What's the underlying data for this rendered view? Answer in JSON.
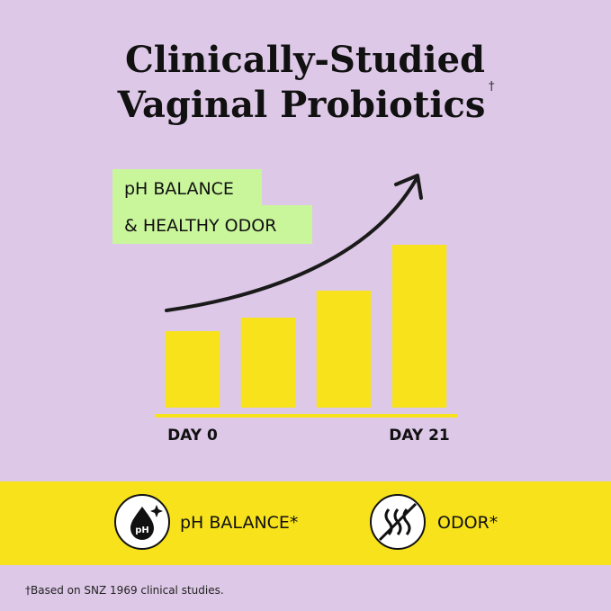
{
  "chart_data": {
    "type": "bar",
    "title_lines": [
      "Clinically-Studied",
      "Vaginal Probiotics"
    ],
    "title_mark": "†",
    "annotation_lines": [
      "pH BALANCE",
      "& HEALTHY ODOR"
    ],
    "categories": [
      "DAY 0",
      null,
      null,
      "DAY 21"
    ],
    "values": [
      85,
      100,
      130,
      181
    ],
    "color": "#f7e21c",
    "ylim": [
      0,
      200
    ]
  },
  "benefits": [
    "pH BALANCE*",
    "ODOR*"
  ],
  "footnote": "†Based on SNZ 1969 clinical studies."
}
